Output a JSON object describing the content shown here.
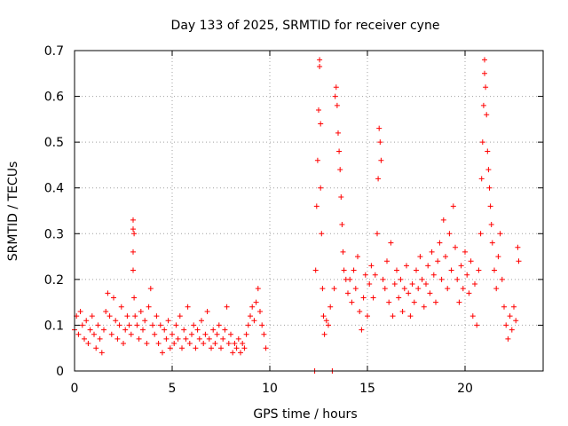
{
  "chart_data": {
    "type": "scatter",
    "title": "Day 133 of 2025, SRMTID for receiver cyne",
    "xlabel": "GPS time / hours",
    "ylabel": "SRMTID / TECUs",
    "xlim": [
      0,
      24
    ],
    "ylim": [
      0,
      0.7
    ],
    "xticks": [
      0,
      5,
      10,
      15,
      20
    ],
    "xtick_labels": [
      "0",
      "5",
      "10",
      "15",
      "20"
    ],
    "yticks": [
      0,
      0.1,
      0.2,
      0.3,
      0.4,
      0.5,
      0.6,
      0.7
    ],
    "ytick_labels": [
      "0",
      "0.1",
      "0.2",
      "0.3",
      "0.4",
      "0.5",
      "0.6",
      "0.7"
    ],
    "grid": true,
    "marker": "+",
    "color": "#ff0000",
    "series": [
      {
        "name": "SRMTID",
        "points": [
          [
            0.0,
            0.09
          ],
          [
            0.1,
            0.12
          ],
          [
            0.2,
            0.08
          ],
          [
            0.3,
            0.13
          ],
          [
            0.4,
            0.1
          ],
          [
            0.5,
            0.07
          ],
          [
            0.6,
            0.11
          ],
          [
            0.7,
            0.06
          ],
          [
            0.8,
            0.09
          ],
          [
            0.9,
            0.12
          ],
          [
            1.0,
            0.08
          ],
          [
            1.1,
            0.05
          ],
          [
            1.2,
            0.1
          ],
          [
            1.3,
            0.07
          ],
          [
            1.4,
            0.04
          ],
          [
            1.5,
            0.09
          ],
          [
            1.6,
            0.13
          ],
          [
            1.7,
            0.17
          ],
          [
            1.8,
            0.12
          ],
          [
            1.9,
            0.08
          ],
          [
            2.0,
            0.16
          ],
          [
            2.1,
            0.11
          ],
          [
            2.2,
            0.07
          ],
          [
            2.3,
            0.1
          ],
          [
            2.4,
            0.14
          ],
          [
            2.5,
            0.06
          ],
          [
            2.6,
            0.09
          ],
          [
            2.7,
            0.12
          ],
          [
            2.8,
            0.1
          ],
          [
            2.9,
            0.08
          ],
          [
            3.0,
            0.33
          ],
          [
            3.0,
            0.31
          ],
          [
            3.05,
            0.3
          ],
          [
            3.0,
            0.26
          ],
          [
            3.0,
            0.22
          ],
          [
            3.05,
            0.16
          ],
          [
            3.1,
            0.12
          ],
          [
            3.2,
            0.1
          ],
          [
            3.3,
            0.07
          ],
          [
            3.4,
            0.13
          ],
          [
            3.5,
            0.09
          ],
          [
            3.6,
            0.11
          ],
          [
            3.7,
            0.06
          ],
          [
            3.8,
            0.14
          ],
          [
            3.9,
            0.18
          ],
          [
            4.0,
            0.1
          ],
          [
            4.1,
            0.08
          ],
          [
            4.2,
            0.12
          ],
          [
            4.3,
            0.06
          ],
          [
            4.4,
            0.1
          ],
          [
            4.5,
            0.04
          ],
          [
            4.6,
            0.09
          ],
          [
            4.7,
            0.07
          ],
          [
            4.8,
            0.11
          ],
          [
            4.9,
            0.05
          ],
          [
            5.0,
            0.08
          ],
          [
            5.1,
            0.06
          ],
          [
            5.2,
            0.1
          ],
          [
            5.3,
            0.07
          ],
          [
            5.4,
            0.12
          ],
          [
            5.5,
            0.05
          ],
          [
            5.6,
            0.09
          ],
          [
            5.7,
            0.07
          ],
          [
            5.8,
            0.14
          ],
          [
            5.9,
            0.06
          ],
          [
            6.0,
            0.08
          ],
          [
            6.1,
            0.1
          ],
          [
            6.2,
            0.05
          ],
          [
            6.3,
            0.09
          ],
          [
            6.4,
            0.07
          ],
          [
            6.5,
            0.11
          ],
          [
            6.6,
            0.06
          ],
          [
            6.7,
            0.08
          ],
          [
            6.8,
            0.13
          ],
          [
            6.9,
            0.07
          ],
          [
            7.0,
            0.05
          ],
          [
            7.1,
            0.09
          ],
          [
            7.2,
            0.06
          ],
          [
            7.3,
            0.08
          ],
          [
            7.4,
            0.1
          ],
          [
            7.5,
            0.05
          ],
          [
            7.6,
            0.07
          ],
          [
            7.7,
            0.09
          ],
          [
            7.8,
            0.14
          ],
          [
            7.9,
            0.06
          ],
          [
            8.0,
            0.08
          ],
          [
            8.1,
            0.04
          ],
          [
            8.2,
            0.06
          ],
          [
            8.3,
            0.05
          ],
          [
            8.4,
            0.07
          ],
          [
            8.5,
            0.04
          ],
          [
            8.6,
            0.06
          ],
          [
            8.7,
            0.05
          ],
          [
            8.8,
            0.08
          ],
          [
            8.9,
            0.1
          ],
          [
            9.0,
            0.12
          ],
          [
            9.1,
            0.14
          ],
          [
            9.2,
            0.11
          ],
          [
            9.3,
            0.15
          ],
          [
            9.4,
            0.18
          ],
          [
            9.5,
            0.13
          ],
          [
            9.6,
            0.1
          ],
          [
            9.7,
            0.08
          ],
          [
            9.8,
            0.05
          ],
          [
            12.3,
            0.0
          ],
          [
            12.35,
            0.22
          ],
          [
            12.4,
            0.36
          ],
          [
            12.45,
            0.46
          ],
          [
            12.5,
            0.57
          ],
          [
            12.55,
            0.68
          ],
          [
            12.55,
            0.665
          ],
          [
            12.6,
            0.54
          ],
          [
            12.6,
            0.4
          ],
          [
            12.65,
            0.3
          ],
          [
            12.7,
            0.18
          ],
          [
            12.75,
            0.12
          ],
          [
            12.8,
            0.08
          ],
          [
            12.9,
            0.11
          ],
          [
            13.0,
            0.1
          ],
          [
            13.1,
            0.14
          ],
          [
            13.2,
            0.0
          ],
          [
            13.3,
            0.18
          ],
          [
            13.35,
            0.6
          ],
          [
            13.4,
            0.62
          ],
          [
            13.45,
            0.58
          ],
          [
            13.5,
            0.52
          ],
          [
            13.55,
            0.48
          ],
          [
            13.6,
            0.44
          ],
          [
            13.65,
            0.38
          ],
          [
            13.7,
            0.32
          ],
          [
            13.75,
            0.26
          ],
          [
            13.8,
            0.22
          ],
          [
            13.9,
            0.2
          ],
          [
            14.0,
            0.17
          ],
          [
            14.1,
            0.2
          ],
          [
            14.2,
            0.15
          ],
          [
            14.3,
            0.22
          ],
          [
            14.4,
            0.18
          ],
          [
            14.5,
            0.25
          ],
          [
            14.6,
            0.13
          ],
          [
            14.7,
            0.09
          ],
          [
            14.8,
            0.16
          ],
          [
            14.9,
            0.21
          ],
          [
            15.0,
            0.12
          ],
          [
            15.1,
            0.19
          ],
          [
            15.2,
            0.23
          ],
          [
            15.3,
            0.16
          ],
          [
            15.4,
            0.21
          ],
          [
            15.5,
            0.3
          ],
          [
            15.55,
            0.42
          ],
          [
            15.6,
            0.53
          ],
          [
            15.65,
            0.5
          ],
          [
            15.7,
            0.46
          ],
          [
            15.8,
            0.2
          ],
          [
            15.9,
            0.18
          ],
          [
            16.0,
            0.24
          ],
          [
            16.1,
            0.15
          ],
          [
            16.2,
            0.28
          ],
          [
            16.3,
            0.12
          ],
          [
            16.4,
            0.19
          ],
          [
            16.5,
            0.22
          ],
          [
            16.6,
            0.16
          ],
          [
            16.7,
            0.2
          ],
          [
            16.8,
            0.13
          ],
          [
            16.9,
            0.18
          ],
          [
            17.0,
            0.23
          ],
          [
            17.1,
            0.17
          ],
          [
            17.2,
            0.12
          ],
          [
            17.3,
            0.19
          ],
          [
            17.4,
            0.15
          ],
          [
            17.5,
            0.22
          ],
          [
            17.6,
            0.18
          ],
          [
            17.7,
            0.25
          ],
          [
            17.8,
            0.2
          ],
          [
            17.9,
            0.14
          ],
          [
            18.0,
            0.19
          ],
          [
            18.1,
            0.23
          ],
          [
            18.2,
            0.17
          ],
          [
            18.3,
            0.26
          ],
          [
            18.4,
            0.21
          ],
          [
            18.5,
            0.15
          ],
          [
            18.6,
            0.24
          ],
          [
            18.7,
            0.28
          ],
          [
            18.8,
            0.2
          ],
          [
            18.9,
            0.33
          ],
          [
            19.0,
            0.25
          ],
          [
            19.1,
            0.18
          ],
          [
            19.2,
            0.3
          ],
          [
            19.3,
            0.22
          ],
          [
            19.4,
            0.36
          ],
          [
            19.5,
            0.27
          ],
          [
            19.6,
            0.2
          ],
          [
            19.7,
            0.15
          ],
          [
            19.8,
            0.23
          ],
          [
            19.9,
            0.18
          ],
          [
            20.0,
            0.26
          ],
          [
            20.1,
            0.21
          ],
          [
            20.2,
            0.17
          ],
          [
            20.3,
            0.24
          ],
          [
            20.4,
            0.12
          ],
          [
            20.5,
            0.19
          ],
          [
            20.6,
            0.1
          ],
          [
            20.7,
            0.22
          ],
          [
            20.8,
            0.3
          ],
          [
            20.85,
            0.42
          ],
          [
            20.9,
            0.5
          ],
          [
            20.95,
            0.58
          ],
          [
            21.0,
            0.68
          ],
          [
            21.0,
            0.65
          ],
          [
            21.05,
            0.62
          ],
          [
            21.1,
            0.56
          ],
          [
            21.15,
            0.48
          ],
          [
            21.2,
            0.44
          ],
          [
            21.25,
            0.4
          ],
          [
            21.3,
            0.36
          ],
          [
            21.35,
            0.32
          ],
          [
            21.4,
            0.28
          ],
          [
            21.5,
            0.22
          ],
          [
            21.6,
            0.18
          ],
          [
            21.7,
            0.25
          ],
          [
            21.8,
            0.3
          ],
          [
            21.9,
            0.2
          ],
          [
            22.0,
            0.14
          ],
          [
            22.1,
            0.1
          ],
          [
            22.2,
            0.07
          ],
          [
            22.3,
            0.12
          ],
          [
            22.4,
            0.09
          ],
          [
            22.5,
            0.14
          ],
          [
            22.6,
            0.11
          ],
          [
            22.7,
            0.27
          ],
          [
            22.75,
            0.24
          ]
        ]
      }
    ]
  }
}
